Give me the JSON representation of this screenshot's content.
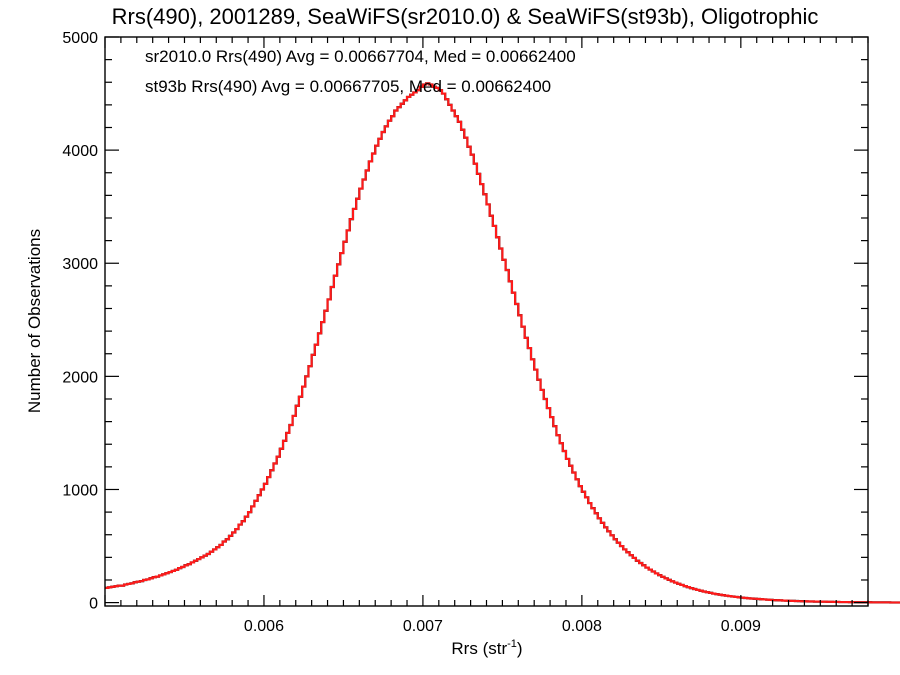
{
  "chart_data": {
    "type": "histogram",
    "title": "Rrs(490), 2001289, SeaWiFS(sr2010.0) & SeaWiFS(st93b), Oligotrophic",
    "xlabel_main": "Rrs (str",
    "xlabel_sup": "-1",
    "xlabel_close": ")",
    "ylabel": "Number of Observations",
    "xlim": [
      0.005,
      0.0098
    ],
    "ylim": [
      -30,
      5000
    ],
    "xticks": [
      {
        "value": 0.006,
        "label": "0.006"
      },
      {
        "value": 0.007,
        "label": "0.007"
      },
      {
        "value": 0.008,
        "label": "0.008"
      },
      {
        "value": 0.009,
        "label": "0.009"
      }
    ],
    "yticks": [
      {
        "value": 0,
        "label": "0"
      },
      {
        "value": 1000,
        "label": "1000"
      },
      {
        "value": 2000,
        "label": "2000"
      },
      {
        "value": 3000,
        "label": "3000"
      },
      {
        "value": 4000,
        "label": "4000"
      },
      {
        "value": 5000,
        "label": "5000"
      }
    ],
    "grid": false,
    "legend_position": "top-left",
    "series": [
      {
        "name": "sr2010.0",
        "legend_text": "sr2010.0 Rrs(490) Avg = 0.00667704, Med = 0.00662400",
        "color": "#000000"
      },
      {
        "name": "st93b",
        "legend_text": "st93b Rrs(490) Avg = 0.00667705, Med = 0.00662400",
        "color": "#ff1a1a"
      }
    ],
    "bin_width": 2e-05,
    "x_start": 0.005,
    "values": [
      130,
      135,
      140,
      145,
      150,
      150,
      160,
      165,
      170,
      180,
      185,
      190,
      200,
      205,
      215,
      225,
      230,
      240,
      250,
      260,
      270,
      280,
      290,
      305,
      315,
      330,
      340,
      355,
      370,
      385,
      400,
      415,
      430,
      450,
      470,
      490,
      510,
      540,
      560,
      590,
      620,
      650,
      690,
      720,
      760,
      800,
      850,
      900,
      950,
      1000,
      1050,
      1110,
      1170,
      1230,
      1290,
      1360,
      1430,
      1500,
      1570,
      1650,
      1740,
      1820,
      1910,
      2000,
      2090,
      2190,
      2280,
      2380,
      2480,
      2580,
      2680,
      2790,
      2890,
      2990,
      3090,
      3190,
      3290,
      3390,
      3480,
      3570,
      3660,
      3740,
      3820,
      3900,
      3970,
      4040,
      4100,
      4160,
      4210,
      4260,
      4300,
      4350,
      4380,
      4410,
      4440,
      4470,
      4490,
      4510,
      4530,
      4560,
      4580,
      4590,
      4580,
      4560,
      4550,
      4530,
      4500,
      4450,
      4400,
      4350,
      4300,
      4250,
      4180,
      4110,
      4030,
      3960,
      3880,
      3790,
      3700,
      3610,
      3520,
      3420,
      3330,
      3230,
      3130,
      3030,
      2940,
      2840,
      2740,
      2640,
      2540,
      2440,
      2340,
      2250,
      2150,
      2060,
      1970,
      1880,
      1800,
      1720,
      1640,
      1560,
      1480,
      1410,
      1340,
      1270,
      1210,
      1150,
      1090,
      1030,
      980,
      930,
      880,
      835,
      790,
      745,
      705,
      665,
      630,
      595,
      560,
      530,
      500,
      470,
      445,
      420,
      395,
      370,
      350,
      330,
      310,
      292,
      275,
      258,
      243,
      228,
      214,
      201,
      188,
      177,
      166,
      156,
      146,
      137,
      128,
      120,
      112,
      105,
      98,
      92,
      86,
      80,
      75,
      70,
      66,
      62,
      58,
      54,
      50,
      47,
      44,
      41,
      38,
      36,
      34,
      32,
      30,
      28,
      26,
      24,
      22,
      21,
      20,
      18,
      17,
      16,
      15,
      14,
      13,
      12,
      11,
      10,
      10,
      9,
      9,
      8,
      8,
      7,
      7,
      6,
      6,
      5,
      5,
      5,
      4,
      4,
      4,
      3,
      3,
      3,
      3,
      2,
      2,
      2,
      2,
      2,
      2,
      1,
      1,
      1,
      1,
      1,
      1,
      1,
      0
    ]
  }
}
